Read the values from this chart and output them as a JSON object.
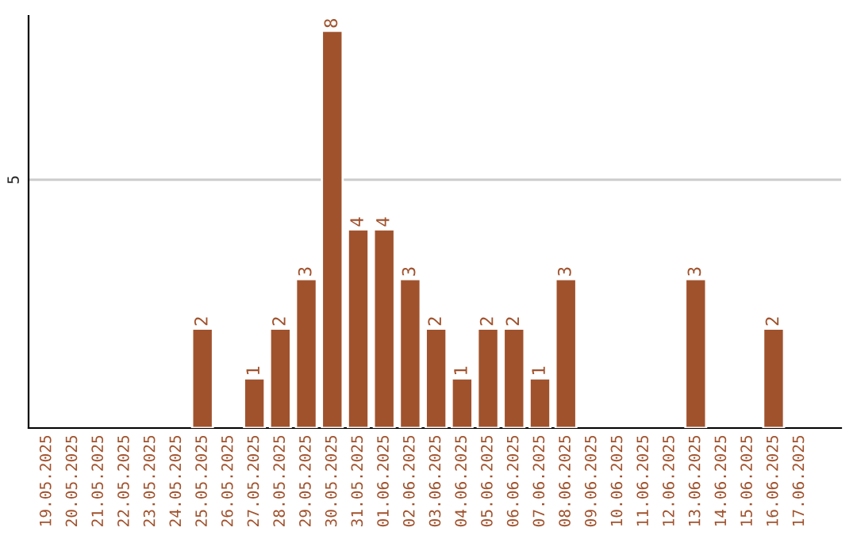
{
  "chart_data": {
    "type": "bar",
    "categories": [
      "19.05.2025",
      "20.05.2025",
      "21.05.2025",
      "22.05.2025",
      "23.05.2025",
      "24.05.2025",
      "25.05.2025",
      "26.05.2025",
      "27.05.2025",
      "28.05.2025",
      "29.05.2025",
      "30.05.2025",
      "31.05.2025",
      "01.06.2025",
      "02.06.2025",
      "03.06.2025",
      "04.06.2025",
      "05.06.2025",
      "06.06.2025",
      "07.06.2025",
      "08.06.2025",
      "09.06.2025",
      "10.06.2025",
      "11.06.2025",
      "12.06.2025",
      "13.06.2025",
      "14.06.2025",
      "15.06.2025",
      "16.06.2025",
      "17.06.2025"
    ],
    "values": [
      null,
      null,
      null,
      null,
      null,
      null,
      2,
      null,
      1,
      2,
      3,
      8,
      4,
      4,
      3,
      2,
      1,
      2,
      2,
      1,
      3,
      null,
      null,
      null,
      null,
      3,
      null,
      null,
      2,
      null
    ],
    "value_labels": [
      null,
      null,
      null,
      null,
      null,
      null,
      "2",
      null,
      "1",
      "2",
      "3",
      "8",
      "4",
      "4",
      "3",
      "2",
      "1",
      "2",
      "2",
      "1",
      "3",
      null,
      null,
      null,
      null,
      "3",
      null,
      null,
      "2",
      null
    ],
    "color": "#a0522d",
    "ylim": [
      0,
      8.3
    ],
    "yticks": [
      5
    ],
    "grid": "y"
  }
}
